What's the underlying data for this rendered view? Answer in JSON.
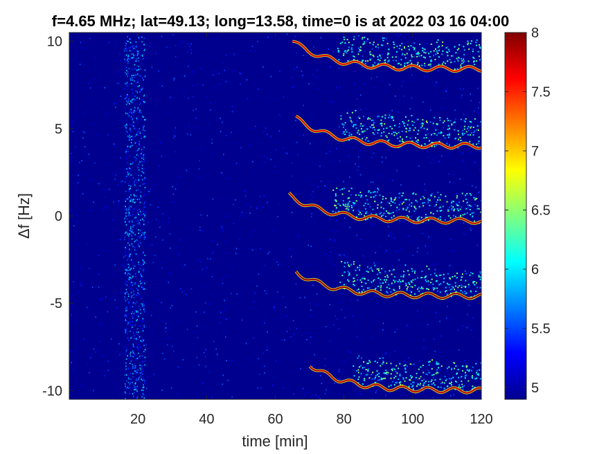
{
  "chart_data": {
    "type": "heatmap",
    "title": "f=4.65 MHz;  lat=49.13; long=13.58, time=0 is at 2022 03 16 04:00",
    "xlabel": "time [min]",
    "ylabel": "Δf [Hz]",
    "xlim": [
      0,
      120
    ],
    "ylim": [
      -10.5,
      10.5
    ],
    "xticks": [
      20,
      40,
      60,
      80,
      100,
      120
    ],
    "yticks": [
      10,
      5,
      0,
      -5,
      -10
    ],
    "colorbar": {
      "min": 4.9,
      "max": 8,
      "ticks": [
        8,
        7.5,
        7,
        6.5,
        6,
        5.5,
        5
      ],
      "colormap": "jet"
    },
    "background_level": 5.0,
    "noise_band": {
      "x_range": [
        16,
        22
      ],
      "level": 5.6
    },
    "traces": [
      {
        "start": 65,
        "y_start": 10,
        "y_end": 8.4,
        "level": 7.7
      },
      {
        "start": 66,
        "y_start": 5.6,
        "y_end": 4.0,
        "level": 7.7
      },
      {
        "start": 64,
        "y_start": 1.2,
        "y_end": -0.3,
        "level": 7.8
      },
      {
        "start": 66,
        "y_start": -3.2,
        "y_end": -4.6,
        "level": 7.9
      },
      {
        "start": 70,
        "y_start": -8.5,
        "y_end": -10.0,
        "level": 7.8
      }
    ]
  }
}
